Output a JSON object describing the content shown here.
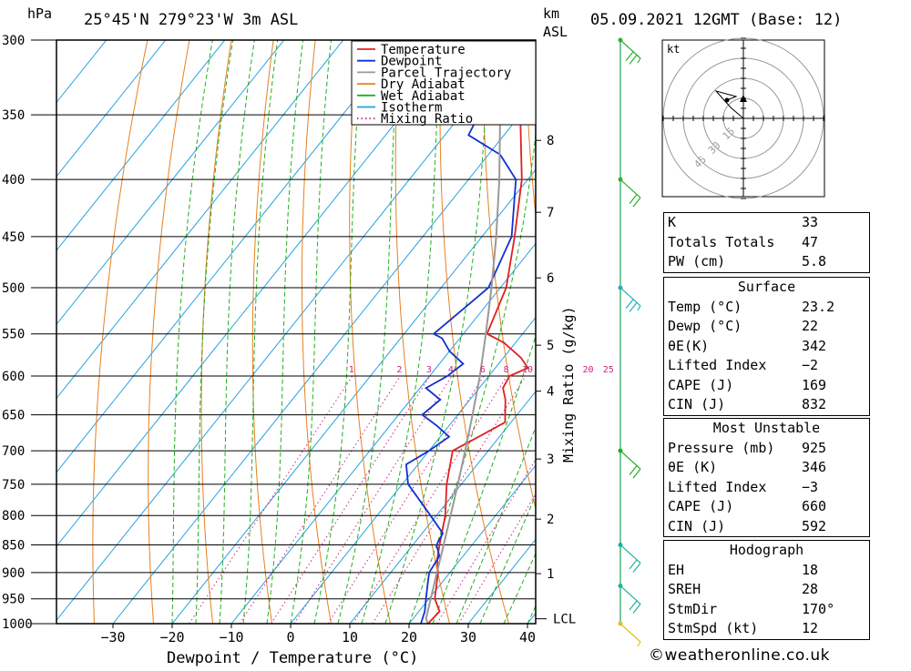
{
  "header": {
    "pressure_unit": "hPa",
    "location": "25°45'N  279°23'W  3m  ASL",
    "height_unit_km": "km",
    "height_unit_asl": "ASL",
    "datetime": "05.09.2021  12GMT  (Base: 12)"
  },
  "chart_data": {
    "type": "line",
    "title": "25°45'N  279°23'W  3m  ASL",
    "xlabel": "Dewpoint / Temperature (°C)",
    "ylabel": "hPa",
    "y2label": "Mixing Ratio (g/kg)",
    "x_ticks": [
      -30,
      -20,
      -10,
      0,
      10,
      20,
      30,
      40
    ],
    "x_tick_labels": [
      "−30",
      "−20",
      "−10",
      "0",
      "10",
      "20",
      "30",
      "40"
    ],
    "pressure_levels": [
      300,
      350,
      400,
      450,
      500,
      550,
      600,
      650,
      700,
      750,
      800,
      850,
      900,
      950,
      1000
    ],
    "km_ticks": [
      {
        "km": 8,
        "p": 369
      },
      {
        "km": 7,
        "p": 428
      },
      {
        "km": 6,
        "p": 490
      },
      {
        "km": 5,
        "p": 563
      },
      {
        "km": 4,
        "p": 619
      },
      {
        "km": 3,
        "p": 712
      },
      {
        "km": 2,
        "p": 806
      },
      {
        "km": 1,
        "p": 902
      }
    ],
    "lcl_label": "LCL",
    "lcl_pressure": 990,
    "mixing_ratio_labels": [
      "1",
      "2",
      "3",
      "4",
      "6",
      "8",
      "10",
      "20",
      "25"
    ],
    "legend": {
      "position": "top-right",
      "entries": [
        {
          "label": "Temperature",
          "color": "#e02020",
          "style": "solid"
        },
        {
          "label": "Dewpoint",
          "color": "#1030d0",
          "style": "solid"
        },
        {
          "label": "Parcel Trajectory",
          "color": "#999999",
          "style": "solid"
        },
        {
          "label": "Dry Adiabat",
          "color": "#e88020",
          "style": "solid"
        },
        {
          "label": "Wet Adiabat",
          "color": "#20b020",
          "style": "solid"
        },
        {
          "label": "Isotherm",
          "color": "#20a0e0",
          "style": "solid"
        },
        {
          "label": "Mixing Ratio",
          "color": "#d02080",
          "style": "dotted"
        }
      ]
    },
    "series": [
      {
        "name": "Temperature",
        "color": "#e02020",
        "points": [
          {
            "p": 1000,
            "t": 23.2
          },
          {
            "p": 975,
            "t": 23.5
          },
          {
            "p": 950,
            "t": 21
          },
          {
            "p": 925,
            "t": 19.5
          },
          {
            "p": 900,
            "t": 18
          },
          {
            "p": 875,
            "t": 16
          },
          {
            "p": 850,
            "t": 14.5
          },
          {
            "p": 800,
            "t": 11.5
          },
          {
            "p": 750,
            "t": 7.5
          },
          {
            "p": 700,
            "t": 4
          },
          {
            "p": 680,
            "t": 6.5
          },
          {
            "p": 660,
            "t": 9
          },
          {
            "p": 650,
            "t": 8
          },
          {
            "p": 630,
            "t": 6
          },
          {
            "p": 615,
            "t": 4
          },
          {
            "p": 600,
            "t": 3.5
          },
          {
            "p": 590,
            "t": 5.5
          },
          {
            "p": 578,
            "t": 3
          },
          {
            "p": 560,
            "t": -2
          },
          {
            "p": 550,
            "t": -6
          },
          {
            "p": 500,
            "t": -9
          },
          {
            "p": 450,
            "t": -14.5
          },
          {
            "p": 400,
            "t": -21
          },
          {
            "p": 350,
            "t": -30
          },
          {
            "p": 300,
            "t": -40
          }
        ]
      },
      {
        "name": "Dewpoint",
        "color": "#1030d0",
        "points": [
          {
            "p": 1000,
            "t": 22
          },
          {
            "p": 975,
            "t": 21
          },
          {
            "p": 950,
            "t": 19.5
          },
          {
            "p": 925,
            "t": 18
          },
          {
            "p": 900,
            "t": 16.5
          },
          {
            "p": 870,
            "t": 16
          },
          {
            "p": 850,
            "t": 14
          },
          {
            "p": 830,
            "t": 13.5
          },
          {
            "p": 800,
            "t": 9
          },
          {
            "p": 750,
            "t": 1
          },
          {
            "p": 720,
            "t": -2
          },
          {
            "p": 700,
            "t": 0
          },
          {
            "p": 680,
            "t": 1.5
          },
          {
            "p": 665,
            "t": -2
          },
          {
            "p": 650,
            "t": -6
          },
          {
            "p": 630,
            "t": -5
          },
          {
            "p": 615,
            "t": -9
          },
          {
            "p": 600,
            "t": -7
          },
          {
            "p": 585,
            "t": -6
          },
          {
            "p": 570,
            "t": -10
          },
          {
            "p": 555,
            "t": -13
          },
          {
            "p": 550,
            "t": -15
          },
          {
            "p": 500,
            "t": -12
          },
          {
            "p": 450,
            "t": -15
          },
          {
            "p": 400,
            "t": -22
          },
          {
            "p": 380,
            "t": -28
          },
          {
            "p": 365,
            "t": -36
          },
          {
            "p": 350,
            "t": -37
          },
          {
            "p": 300,
            "t": -45
          }
        ]
      },
      {
        "name": "Parcel Trajectory",
        "color": "#999999",
        "points": [
          {
            "p": 1000,
            "t": 23.2
          },
          {
            "p": 990,
            "t": 22.2
          },
          {
            "p": 950,
            "t": 20.3
          },
          {
            "p": 900,
            "t": 17.8
          },
          {
            "p": 850,
            "t": 15.2
          },
          {
            "p": 800,
            "t": 12.4
          },
          {
            "p": 750,
            "t": 9.4
          },
          {
            "p": 700,
            "t": 6.1
          },
          {
            "p": 650,
            "t": 2.5
          },
          {
            "p": 600,
            "t": -1.5
          },
          {
            "p": 550,
            "t": -6.2
          },
          {
            "p": 500,
            "t": -11.5
          },
          {
            "p": 450,
            "t": -17.6
          },
          {
            "p": 400,
            "t": -24.8
          },
          {
            "p": 350,
            "t": -33.4
          },
          {
            "p": 300,
            "t": -43.5
          }
        ]
      }
    ],
    "wind_barbs": [
      {
        "p": 300,
        "speed_kt": 15
      },
      {
        "p": 400,
        "speed_kt": 10
      },
      {
        "p": 500,
        "speed_kt": 15
      },
      {
        "p": 700,
        "speed_kt": 10
      },
      {
        "p": 850,
        "speed_kt": 10
      },
      {
        "p": 925,
        "speed_kt": 10
      },
      {
        "p": 1000,
        "speed_kt": 5
      }
    ],
    "hodograph": {
      "unit": "kt",
      "ring_labels": [
        "15",
        "30",
        "45"
      ]
    }
  },
  "indices": {
    "general": [
      {
        "label": "K",
        "value": "33"
      },
      {
        "label": "Totals Totals",
        "value": "47"
      },
      {
        "label": "PW (cm)",
        "value": "5.8"
      }
    ],
    "surface": {
      "title": "Surface",
      "rows": [
        {
          "label": "Temp (°C)",
          "value": "23.2"
        },
        {
          "label": "Dewp (°C)",
          "value": "22"
        },
        {
          "label": "θE(K)",
          "value": "342"
        },
        {
          "label": "Lifted Index",
          "value": "−2"
        },
        {
          "label": "CAPE (J)",
          "value": "169"
        },
        {
          "label": "CIN (J)",
          "value": "832"
        }
      ]
    },
    "most_unstable": {
      "title": "Most Unstable",
      "rows": [
        {
          "label": "Pressure (mb)",
          "value": "925"
        },
        {
          "label": "θE (K)",
          "value": "346"
        },
        {
          "label": "Lifted Index",
          "value": "−3"
        },
        {
          "label": "CAPE (J)",
          "value": "660"
        },
        {
          "label": "CIN (J)",
          "value": "592"
        }
      ]
    },
    "hodograph": {
      "title": "Hodograph",
      "rows": [
        {
          "label": "EH",
          "value": "18"
        },
        {
          "label": "SREH",
          "value": "28"
        },
        {
          "label": "StmDir",
          "value": "170°"
        },
        {
          "label": "StmSpd (kt)",
          "value": "12"
        }
      ]
    }
  },
  "footer": {
    "copyright": "©weatheronline.co.uk"
  }
}
